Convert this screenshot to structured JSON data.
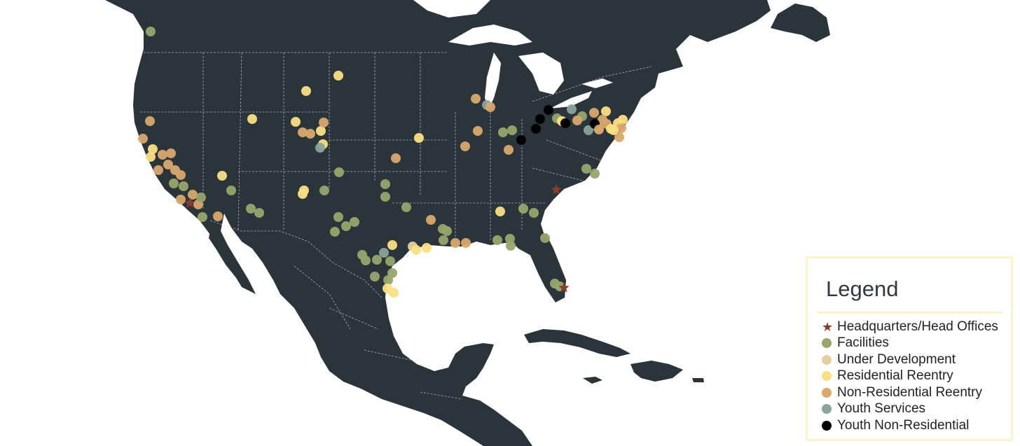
{
  "colors": {
    "land": "#2a343b",
    "water": "#ffffff",
    "borders": "#cfd5d8",
    "headquarters": "#8a3b2b",
    "facilities": "#97a66b",
    "under_development": "#e6cda2",
    "residential_reentry": "#fbe083",
    "non_residential_reentry": "#d9a86c",
    "youth_services": "#8aa49a",
    "youth_non_residential": "#000000"
  },
  "legend": {
    "title": "Legend",
    "items": [
      {
        "label": "Headquarters/Head Offices",
        "color": "#8a3b2b",
        "icon": "star-icon"
      },
      {
        "label": "Facilities",
        "color": "#97a66b",
        "icon": "circle-icon"
      },
      {
        "label": "Under Development",
        "color": "#e6cda2",
        "icon": "circle-icon"
      },
      {
        "label": "Residential Reentry",
        "color": "#fbe083",
        "icon": "circle-icon"
      },
      {
        "label": "Non-Residential Reentry",
        "color": "#d9a86c",
        "icon": "circle-icon"
      },
      {
        "label": "Youth Services",
        "color": "#8aa49a",
        "icon": "circle-icon"
      },
      {
        "label": "Youth Non-Residential",
        "color": "#000000",
        "icon": "circle-icon"
      }
    ]
  }
}
